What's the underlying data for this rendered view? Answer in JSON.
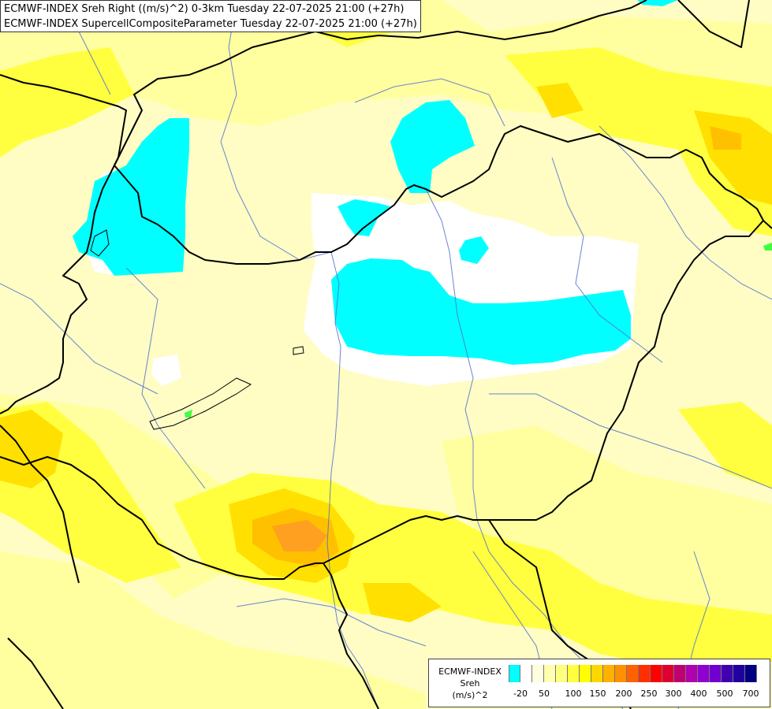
{
  "title": {
    "line1": "ECMWF-INDEX Sreh Right ((m/s)^2) 0-3km Tuesday 22-07-2025 21:00 (+27h)",
    "line2": "ECMWF-INDEX SupercellCompositeParameter Tuesday 22-07-2025 21:00 (+27h)"
  },
  "legend": {
    "line1": "ECMWF-INDEX",
    "line2": "Sreh",
    "line3": "(m/s)^2",
    "colors": [
      "#00ffff",
      "#ffffff",
      "#ffffe0",
      "#ffffb0",
      "#ffff80",
      "#ffff40",
      "#ffff00",
      "#ffd700",
      "#ffb000",
      "#ff9000",
      "#ff6000",
      "#ff3000",
      "#ff0000",
      "#e00030",
      "#c00070",
      "#b000b0",
      "#9000d0",
      "#7000d0",
      "#4000b0",
      "#2000a0",
      "#000080"
    ],
    "ticks": [
      "-20",
      "50",
      "100",
      "150",
      "200",
      "250",
      "300",
      "400",
      "500",
      "700"
    ]
  },
  "map": {
    "colors": {
      "background": "#fffdc4",
      "pale_yellow": "#ffffa0",
      "yellow": "#ffff40",
      "gold": "#ffe000",
      "orange": "#ffc000",
      "dark_orange": "#ffa020",
      "white": "#ffffff",
      "cyan": "#00ffff",
      "green": "#40ff40",
      "border": "#000000",
      "river": "#5070d0"
    }
  }
}
